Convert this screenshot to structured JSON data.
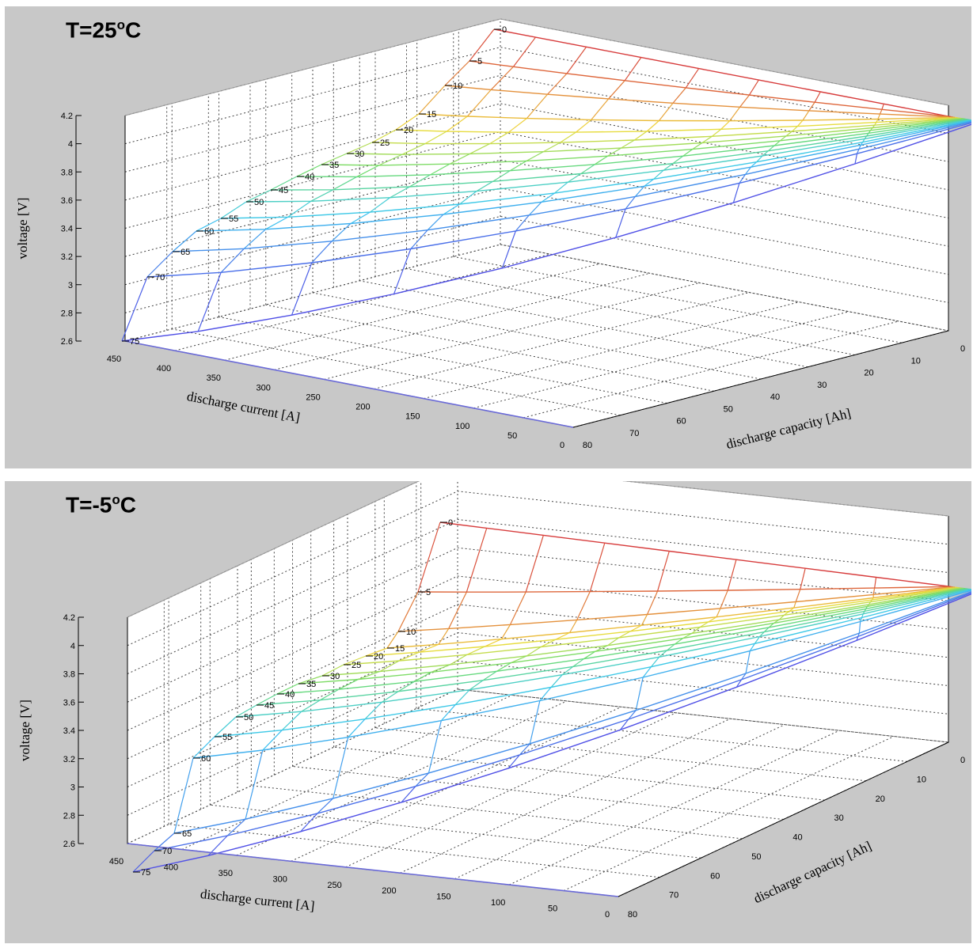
{
  "chart_data": [
    {
      "type": "surface",
      "title_prefix": "T=25",
      "title_sup": "o",
      "title_suffix": "C",
      "xlabel": "discharge capacity [Ah]",
      "ylabel": "discharge current [A]",
      "zlabel": "voltage [V]",
      "xlim": [
        0,
        80
      ],
      "ylim": [
        0,
        450
      ],
      "zlim": [
        2.6,
        4.2
      ],
      "x_ticks": [
        "0",
        "10",
        "20",
        "30",
        "40",
        "50",
        "60",
        "70",
        "80"
      ],
      "y_ticks": [
        "0",
        "50",
        "100",
        "150",
        "200",
        "250",
        "300",
        "350",
        "400",
        "450"
      ],
      "z_ticks": [
        "2.6",
        "2.8",
        "3",
        "3.2",
        "3.4",
        "3.6",
        "3.8",
        "4",
        "4.2"
      ],
      "grid": true,
      "curve_labels": [
        "0",
        "5",
        "10",
        "15",
        "20",
        "25",
        "30",
        "35",
        "40",
        "45",
        "50",
        "55",
        "60",
        "65",
        "70",
        "75"
      ]
    },
    {
      "type": "surface",
      "title_prefix": "T=-5",
      "title_sup": "o",
      "title_suffix": "C",
      "xlabel": "discharge capacity [Ah]",
      "ylabel": "discharge current [A]",
      "zlabel": "voltage [V]",
      "xlim": [
        0,
        80
      ],
      "ylim": [
        0,
        450
      ],
      "zlim": [
        2.6,
        4.2
      ],
      "x_ticks": [
        "0",
        "10",
        "20",
        "30",
        "40",
        "50",
        "60",
        "70",
        "80"
      ],
      "y_ticks": [
        "0",
        "50",
        "100",
        "150",
        "200",
        "250",
        "300",
        "350",
        "400",
        "450"
      ],
      "z_ticks": [
        "2.6",
        "2.8",
        "3",
        "3.2",
        "3.4",
        "3.6",
        "3.8",
        "4",
        "4.2"
      ],
      "grid": true,
      "curve_labels": [
        "0",
        "5",
        "10",
        "15",
        "20",
        "25",
        "30",
        "35",
        "40",
        "45",
        "50",
        "55",
        "60",
        "65",
        "70",
        "75"
      ]
    }
  ],
  "colors": {
    "background": "#c8c8c8",
    "axes_face": "#ffffff",
    "grid": "#555555"
  }
}
